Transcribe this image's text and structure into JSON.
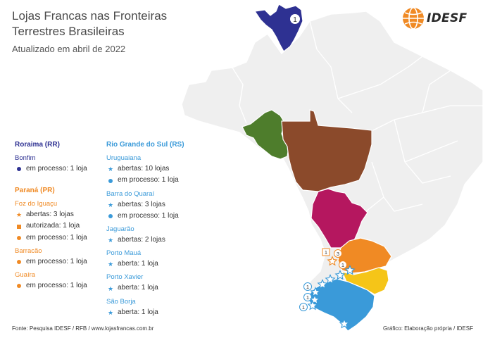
{
  "title_line1": "Lojas Francas nas Fronteiras",
  "title_line2": "Terrestres Brasileiras",
  "subtitle": "Atualizado em abril de 2022",
  "logo_text": "IDESF",
  "colors": {
    "roraima": "#2e3192",
    "parana": "#f08a24",
    "rio_grande_do_sul": "#3a9ad9",
    "acre_rondonia": "#4e7d2c",
    "mato_grosso": "#8b4a2b",
    "mato_grosso_do_sul": "#b5175f",
    "santa_catarina": "#f5c518",
    "base_map": "#efefef",
    "borders": "#ffffff"
  },
  "map_badges": [
    "1",
    "1",
    "3",
    "1",
    "1",
    "1",
    "1"
  ],
  "legend": {
    "roraima": {
      "title": "Roraima (RR)",
      "cities": [
        {
          "name": "Bonfim",
          "items": [
            {
              "marker": "dot",
              "text": "em processo: 1 loja"
            }
          ]
        }
      ]
    },
    "parana": {
      "title": "Paraná (PR)",
      "cities": [
        {
          "name": "Foz do Iguaçu",
          "items": [
            {
              "marker": "star",
              "text": "abertas: 3 lojas"
            },
            {
              "marker": "square",
              "text": "autorizada: 1 loja"
            },
            {
              "marker": "dot",
              "text": "em processo: 1 loja"
            }
          ]
        },
        {
          "name": "Barracão",
          "items": [
            {
              "marker": "dot",
              "text": "em processo: 1 loja"
            }
          ]
        },
        {
          "name": "Guaíra",
          "items": [
            {
              "marker": "dot",
              "text": "em processo: 1 loja"
            }
          ]
        }
      ]
    },
    "rio_grande_do_sul": {
      "title": "Rio Grande do Sul (RS)",
      "cities": [
        {
          "name": "Uruguaiana",
          "items": [
            {
              "marker": "star",
              "text": "abertas: 10 lojas"
            },
            {
              "marker": "dot",
              "text": "em processo: 1 loja"
            }
          ]
        },
        {
          "name": "Barra do Quaraí",
          "items": [
            {
              "marker": "star",
              "text": "abertas: 3 lojas"
            },
            {
              "marker": "dot",
              "text": "em processo: 1 loja"
            }
          ]
        },
        {
          "name": "Jaguarão",
          "items": [
            {
              "marker": "star",
              "text": "abertas: 2 lojas"
            }
          ]
        },
        {
          "name": "Porto Mauá",
          "items": [
            {
              "marker": "star",
              "text": "aberta: 1 loja"
            }
          ]
        },
        {
          "name": "Porto Xavier",
          "items": [
            {
              "marker": "star",
              "text": "aberta: 1 loja"
            }
          ]
        },
        {
          "name": "São Borja",
          "items": [
            {
              "marker": "star",
              "text": "aberta: 1 loja"
            }
          ]
        }
      ]
    }
  },
  "footer_left": "Fonte: Pesquisa IDESF / RFB / www.lojasfrancas.com.br",
  "footer_right": "Gráfico: Elaboração própria / IDESF"
}
